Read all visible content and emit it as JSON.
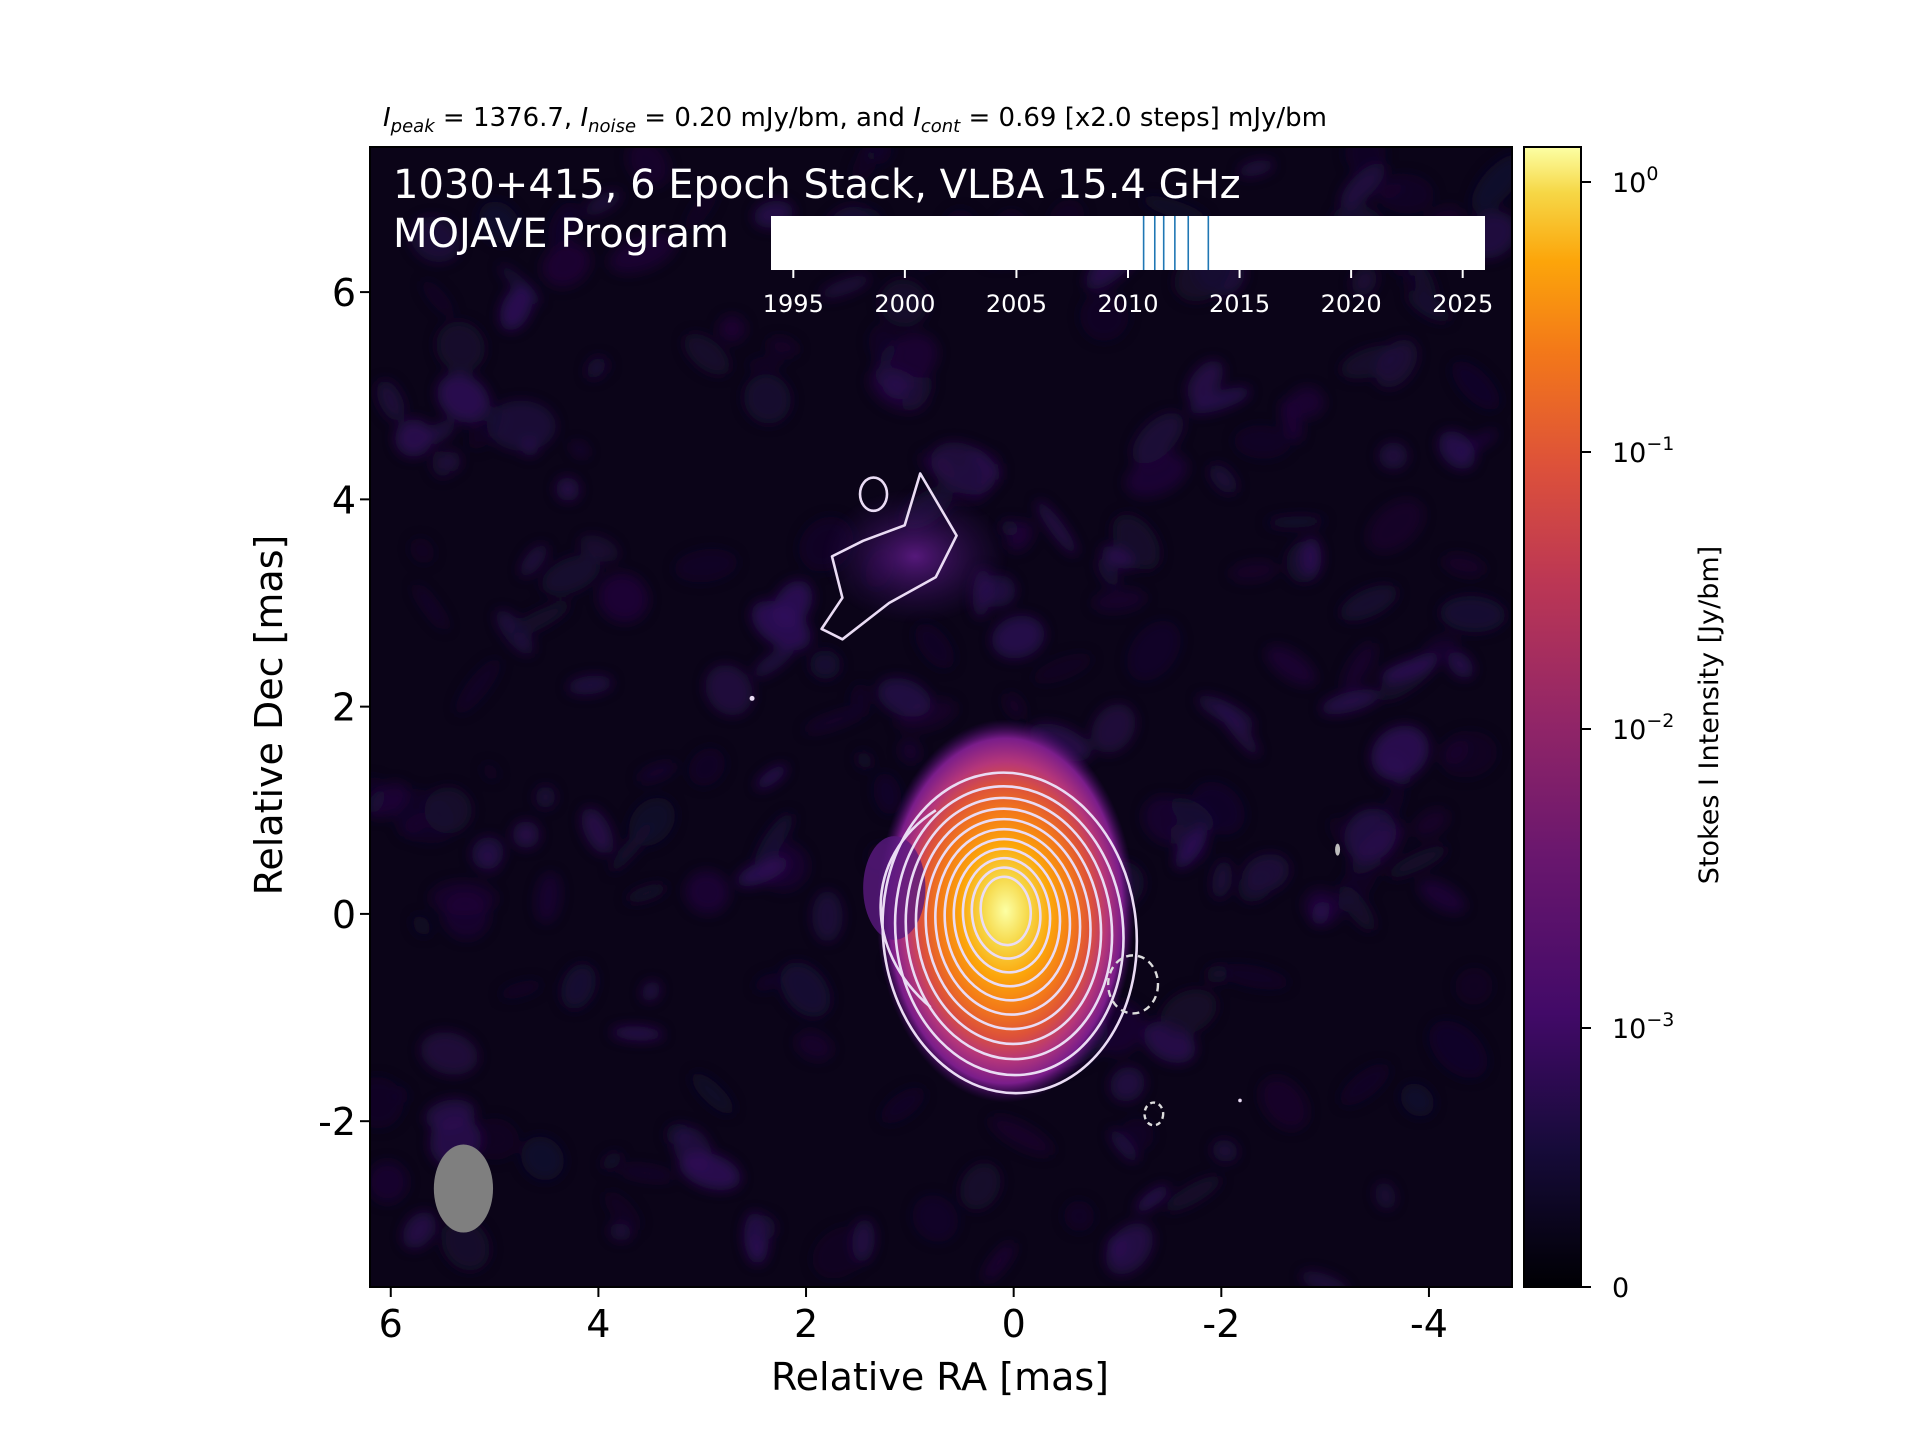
{
  "figure": {
    "header_parts": [
      {
        "text": "I",
        "kind": "italic"
      },
      {
        "text": "peak",
        "kind": "sub"
      },
      {
        "text": " = 1376.7, ",
        "kind": "normal"
      },
      {
        "text": "I",
        "kind": "italic"
      },
      {
        "text": "noise",
        "kind": "sub"
      },
      {
        "text": " = 0.20 mJy/bm, and ",
        "kind": "normal"
      },
      {
        "text": "I",
        "kind": "italic"
      },
      {
        "text": "cont",
        "kind": "sub"
      },
      {
        "text": " = 0.69 [x2.0 steps] mJy/bm",
        "kind": "normal"
      }
    ],
    "title_line1": "1030+415, 6 Epoch Stack, VLBA 15.4 GHz",
    "title_line2": "MOJAVE Program"
  },
  "chart_data": {
    "type": "heatmap",
    "colormap": "inferno",
    "xlabel": "Relative RA [mas]",
    "ylabel": "Relative Dec [mas]",
    "xlim": [
      6.2,
      -4.8
    ],
    "ylim": [
      -3.6,
      7.4
    ],
    "x_ticks": [
      6,
      4,
      2,
      0,
      -2,
      -4
    ],
    "y_ticks": [
      6,
      4,
      2,
      0,
      -2
    ],
    "peak_position": [
      0.0,
      0.0
    ],
    "contour_levels_mJy": [
      0.69,
      1.38,
      2.76,
      5.52,
      11.04,
      22.08,
      44.16,
      88.32,
      176.64,
      353.28,
      706.56
    ],
    "negative_contour_levels_mJy": [
      -0.69
    ],
    "beam": {
      "major_mas": 0.85,
      "minor_mas": 0.57,
      "pa_deg": 0,
      "color": "#7f7f7f",
      "center": [
        5.3,
        -2.65
      ]
    },
    "colorbar": {
      "label": "Stokes I Intensity [Jy/bm]",
      "scale": "symlog",
      "ticks": [
        {
          "base": "0",
          "exp": ""
        },
        {
          "base": "10",
          "exp": "−3"
        },
        {
          "base": "10",
          "exp": "−2"
        },
        {
          "base": "10",
          "exp": "−1"
        },
        {
          "base": "10",
          "exp": "0"
        }
      ],
      "max_Jy": 1.3767
    },
    "epoch_timeline": {
      "ticks": [
        1995,
        2000,
        2005,
        2010,
        2015,
        2020,
        2025
      ],
      "range": [
        1994,
        2026
      ],
      "epochs": [
        2010.7,
        2011.2,
        2011.6,
        2012.1,
        2012.7,
        2013.6
      ],
      "line_color": "#1f77b4"
    }
  }
}
